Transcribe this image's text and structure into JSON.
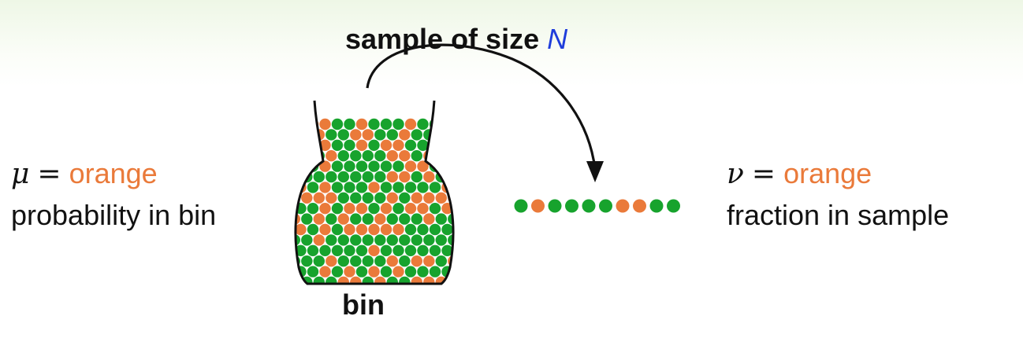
{
  "title": {
    "prefix": "sample of size",
    "variable": "N"
  },
  "left": {
    "symbol": "μ",
    "equals": "=",
    "term": "orange",
    "caption": "probability in bin"
  },
  "right": {
    "symbol": "ν",
    "equals": "=",
    "term": "orange",
    "caption": "fraction in sample"
  },
  "bin_label": "bin",
  "colors": {
    "orange": "#ea7a3a",
    "green": "#17a32d",
    "variable_blue": "#1f3ddb",
    "outline": "#111111"
  },
  "sample_marbles": [
    "green",
    "orange",
    "green",
    "green",
    "green",
    "green",
    "orange",
    "orange",
    "green",
    "green"
  ]
}
